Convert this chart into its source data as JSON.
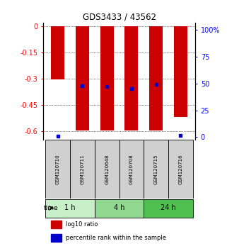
{
  "title": "GDS3433 / 43562",
  "samples": [
    "GSM120710",
    "GSM120711",
    "GSM120648",
    "GSM120708",
    "GSM120715",
    "GSM120716"
  ],
  "log10_ratio": [
    -0.305,
    -0.595,
    -0.595,
    -0.595,
    -0.595,
    -0.52
  ],
  "percentile_rank": [
    1.0,
    48.0,
    47.0,
    45.0,
    49.0,
    1.5
  ],
  "ylim_left": [
    -0.65,
    0.02
  ],
  "ylim_right": [
    -2.6,
    107.0
  ],
  "yticks_left": [
    0,
    -0.15,
    -0.3,
    -0.45,
    -0.6
  ],
  "yticks_right": [
    0,
    25,
    50,
    75,
    100
  ],
  "bar_color": "#cc0000",
  "dot_color": "#0000cc",
  "bar_width": 0.55,
  "group_boundaries": [
    [
      0,
      1,
      "#c8f0c8",
      "1 h"
    ],
    [
      2,
      3,
      "#90d890",
      "4 h"
    ],
    [
      4,
      5,
      "#50c050",
      "24 h"
    ]
  ],
  "legend_labels": [
    "log10 ratio",
    "percentile rank within the sample"
  ],
  "legend_colors": [
    "#cc0000",
    "#0000cc"
  ]
}
